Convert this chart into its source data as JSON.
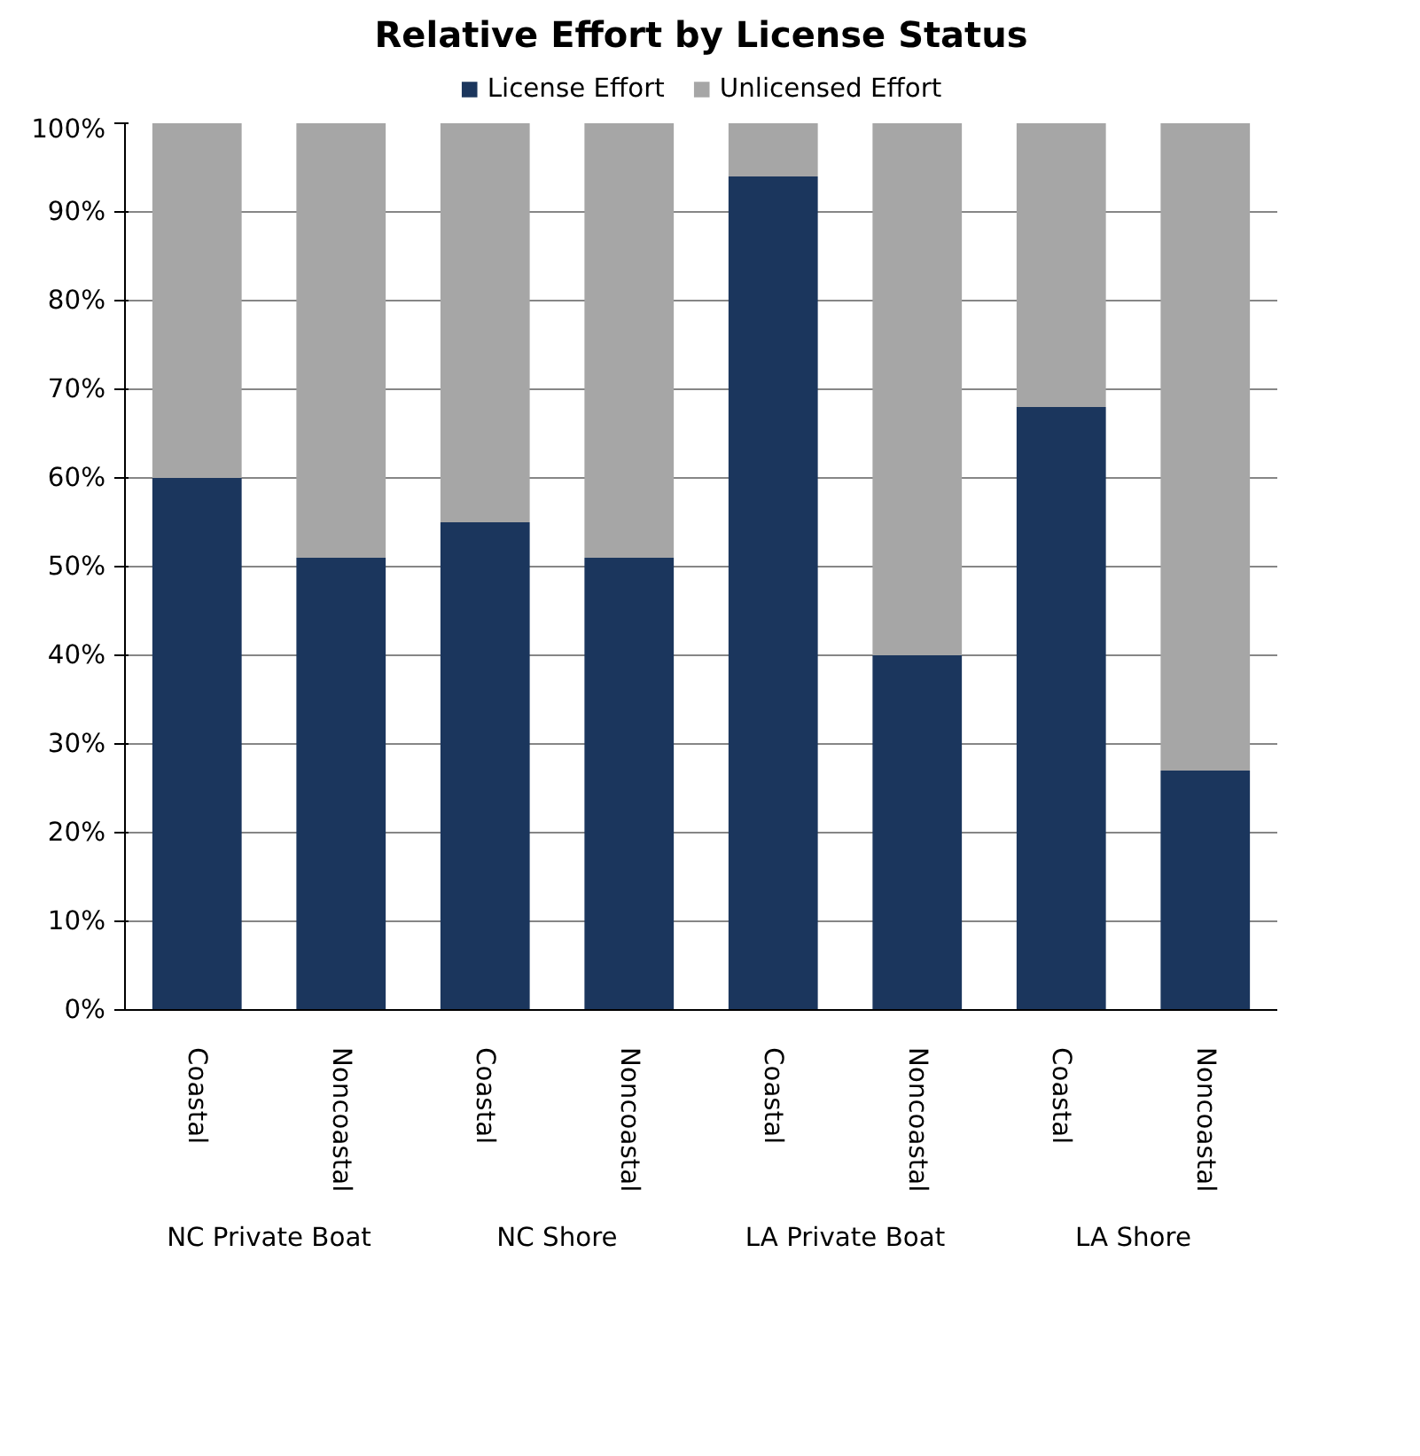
{
  "chart_data": {
    "type": "bar",
    "title": "Relative Effort by License Status",
    "categories": [
      "Coastal",
      "Noncoastal",
      "Coastal",
      "Noncoastal",
      "Coastal",
      "Noncoastal",
      "Coastal",
      "Noncoastal"
    ],
    "series": [
      {
        "name": "License Effort",
        "color": "#1b365d",
        "values": [
          60,
          51,
          55,
          51,
          94,
          40,
          68,
          27
        ]
      },
      {
        "name": "Unlicensed Effort",
        "color": "#a6a6a6",
        "values": [
          40,
          49,
          45,
          49,
          6,
          60,
          32,
          73
        ]
      }
    ],
    "stacked": true,
    "ylim": [
      0,
      100
    ],
    "yticks": [
      {
        "value": 0,
        "label": "0%"
      },
      {
        "value": 10,
        "label": "10%"
      },
      {
        "value": 20,
        "label": "20%"
      },
      {
        "value": 30,
        "label": "30%"
      },
      {
        "value": 40,
        "label": "40%"
      },
      {
        "value": 50,
        "label": "50%"
      },
      {
        "value": 60,
        "label": "60%"
      },
      {
        "value": 70,
        "label": "70%"
      },
      {
        "value": 80,
        "label": "80%"
      },
      {
        "value": 90,
        "label": "90%"
      },
      {
        "value": 100,
        "label": "100%"
      }
    ],
    "grid": "y",
    "legend": "top",
    "annotations": [
      "NC Private Boat",
      "NC Shore",
      "LA Private Boat",
      "LA Shore"
    ]
  }
}
